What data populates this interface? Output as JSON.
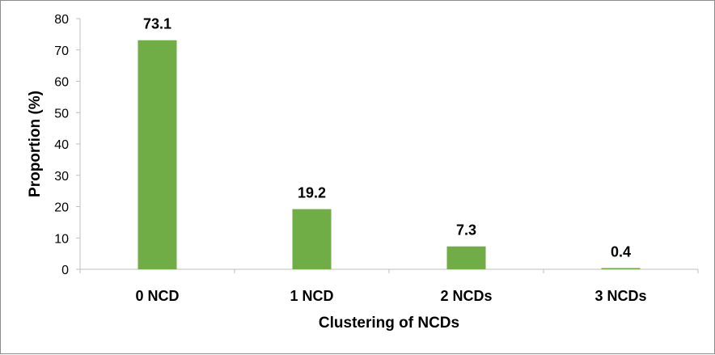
{
  "chart_data": {
    "type": "bar",
    "title": "",
    "xlabel": "Clustering of NCDs",
    "ylabel": "Proportion (%)",
    "categories": [
      "0 NCD",
      "1 NCD",
      "2 NCDs",
      "3 NCDs"
    ],
    "values": [
      73.1,
      19.2,
      7.3,
      0.4
    ],
    "data_labels": [
      "73.1",
      "19.2",
      "7.3",
      "0.4"
    ],
    "ylim": [
      0,
      80
    ],
    "yticks": [
      0,
      10,
      20,
      30,
      40,
      50,
      60,
      70,
      80
    ],
    "grid": false,
    "legend": "none",
    "bar_color": "#70AD47",
    "axis_color": "#BFBFBF"
  }
}
